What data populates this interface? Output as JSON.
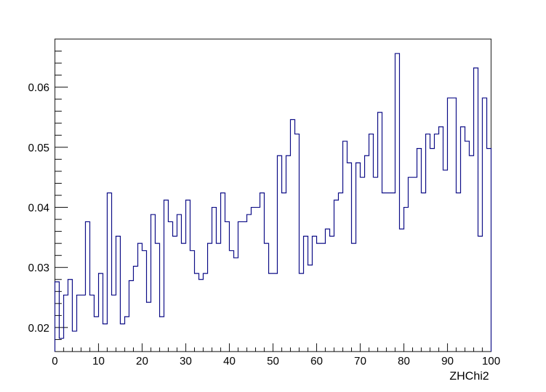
{
  "chart_data": {
    "type": "histogram",
    "title": "",
    "xlabel": "ZHChi2",
    "ylabel": "",
    "xlim": [
      0,
      100
    ],
    "ylim": [
      0.016,
      0.068
    ],
    "grid": false,
    "legend": false,
    "bin_width": 1,
    "line_color": "#000080",
    "x_ticks": [
      {
        "value": 0,
        "label": "0"
      },
      {
        "value": 10,
        "label": "10"
      },
      {
        "value": 20,
        "label": "20"
      },
      {
        "value": 30,
        "label": "30"
      },
      {
        "value": 40,
        "label": "40"
      },
      {
        "value": 50,
        "label": "50"
      },
      {
        "value": 60,
        "label": "60"
      },
      {
        "value": 70,
        "label": "70"
      },
      {
        "value": 80,
        "label": "80"
      },
      {
        "value": 90,
        "label": "90"
      },
      {
        "value": 100,
        "label": "100"
      }
    ],
    "y_ticks": [
      {
        "value": 0.02,
        "label": "0.02"
      },
      {
        "value": 0.03,
        "label": "0.03"
      },
      {
        "value": 0.04,
        "label": "0.04"
      },
      {
        "value": 0.05,
        "label": "0.05"
      },
      {
        "value": 0.06,
        "label": "0.06"
      }
    ],
    "values": [
      0.0276,
      0.0182,
      0.0254,
      0.028,
      0.0194,
      0.0254,
      0.0254,
      0.0376,
      0.0254,
      0.0218,
      0.029,
      0.0206,
      0.0424,
      0.0254,
      0.0352,
      0.0206,
      0.0218,
      0.0278,
      0.0302,
      0.034,
      0.0328,
      0.0242,
      0.0388,
      0.034,
      0.0218,
      0.0412,
      0.0376,
      0.0352,
      0.0388,
      0.034,
      0.0412,
      0.0328,
      0.029,
      0.028,
      0.029,
      0.034,
      0.04,
      0.034,
      0.0424,
      0.0376,
      0.0328,
      0.0316,
      0.0376,
      0.0376,
      0.0388,
      0.04,
      0.04,
      0.0424,
      0.034,
      0.029,
      0.029,
      0.0486,
      0.0424,
      0.0486,
      0.0546,
      0.0522,
      0.029,
      0.0352,
      0.0304,
      0.0352,
      0.034,
      0.034,
      0.0364,
      0.0352,
      0.0412,
      0.0424,
      0.051,
      0.0474,
      0.034,
      0.0474,
      0.045,
      0.0486,
      0.0522,
      0.045,
      0.0558,
      0.0424,
      0.0424,
      0.0424,
      0.0656,
      0.0364,
      0.04,
      0.045,
      0.045,
      0.0498,
      0.0424,
      0.0522,
      0.0498,
      0.0522,
      0.0534,
      0.0462,
      0.0582,
      0.0582,
      0.0424,
      0.0534,
      0.051,
      0.0486,
      0.0632,
      0.0352,
      0.0582,
      0.0498
    ]
  }
}
